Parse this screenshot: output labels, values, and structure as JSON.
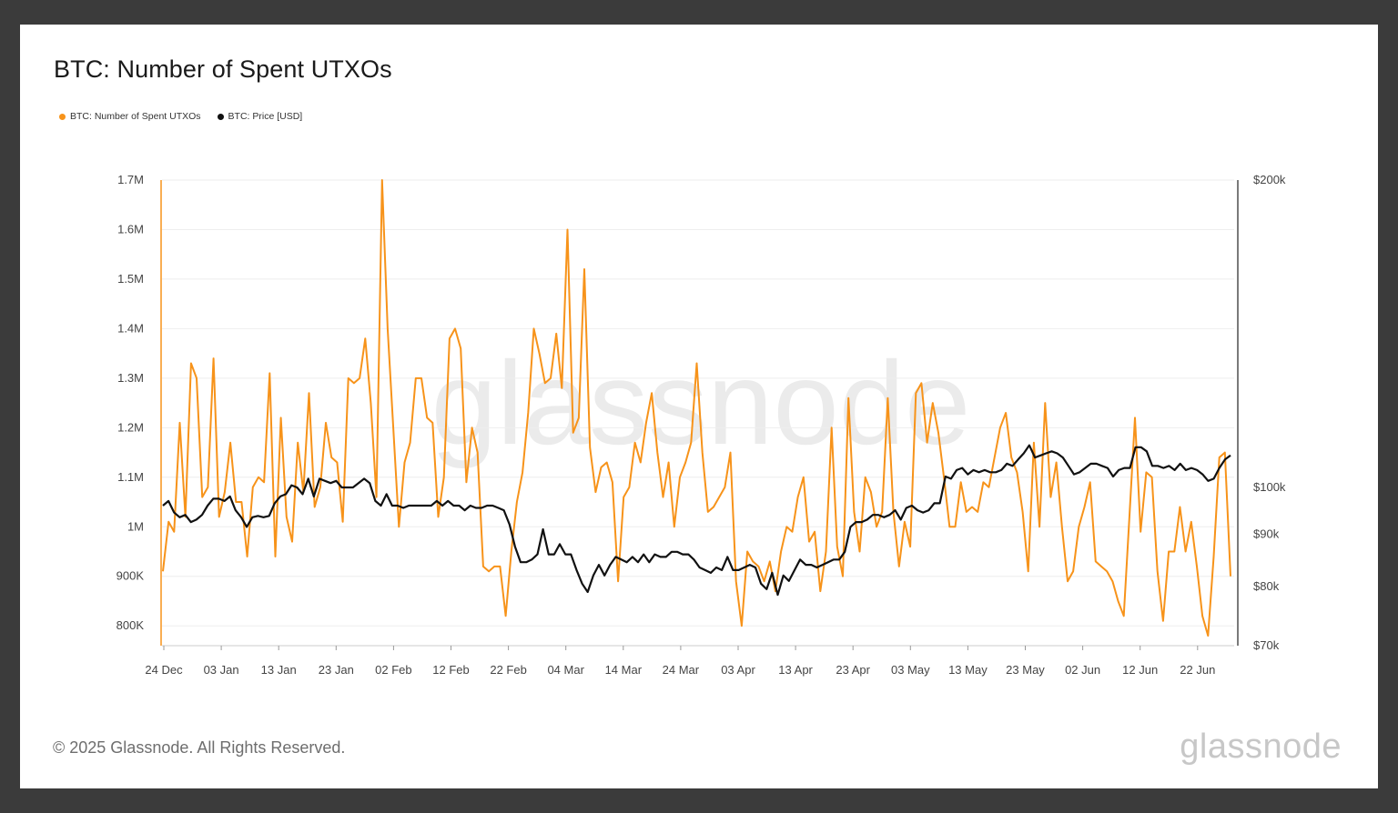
{
  "title": "BTC: Number of Spent UTXOs",
  "footer": "© 2025 Glassnode. All Rights Reserved.",
  "brand": "glassnode",
  "watermark": "glassnode",
  "colors": {
    "utxo": "#f7931a",
    "price": "#111111",
    "grid": "#eeeeee"
  },
  "legend": [
    {
      "label": "BTC: Number of Spent UTXOs",
      "color": "#f7931a"
    },
    {
      "label": "BTC: Price [USD]",
      "color": "#111111"
    }
  ],
  "chart_data": {
    "type": "line",
    "title": "BTC: Number of Spent UTXOs",
    "x_tick_labels": [
      "24 Dec",
      "03 Jan",
      "13 Jan",
      "23 Jan",
      "02 Feb",
      "12 Feb",
      "22 Feb",
      "04 Mar",
      "14 Mar",
      "24 Mar",
      "03 Apr",
      "13 Apr",
      "23 Apr",
      "03 May",
      "13 May",
      "23 May",
      "02 Jun",
      "12 Jun",
      "22 Jun"
    ],
    "y_left": {
      "ticks": [
        800000,
        900000,
        1000000,
        1100000,
        1200000,
        1300000,
        1400000,
        1500000,
        1600000,
        1700000
      ],
      "tick_labels": [
        "800K",
        "900K",
        "1M",
        "1.1M",
        "1.2M",
        "1.3M",
        "1.4M",
        "1.5M",
        "1.6M",
        "1.7M"
      ],
      "ylim": [
        760000,
        1700000
      ]
    },
    "y_right": {
      "scale": "log",
      "ticks": [
        70000,
        80000,
        90000,
        100000,
        200000
      ],
      "tick_labels": [
        "$70k",
        "$80k",
        "$90k",
        "$100k",
        "$200k"
      ],
      "ylim": [
        70000,
        200000
      ]
    },
    "series": [
      {
        "name": "BTC: Number of Spent UTXOs",
        "axis": "left",
        "values": [
          910000,
          1010000,
          990000,
          1210000,
          1020000,
          1330000,
          1300000,
          1060000,
          1080000,
          1340000,
          1020000,
          1070000,
          1170000,
          1050000,
          1050000,
          940000,
          1080000,
          1100000,
          1090000,
          1310000,
          940000,
          1220000,
          1020000,
          970000,
          1170000,
          1070000,
          1270000,
          1040000,
          1080000,
          1210000,
          1140000,
          1130000,
          1010000,
          1300000,
          1290000,
          1300000,
          1380000,
          1250000,
          1060000,
          1700000,
          1400000,
          1200000,
          1000000,
          1130000,
          1170000,
          1300000,
          1300000,
          1220000,
          1210000,
          1020000,
          1100000,
          1380000,
          1400000,
          1360000,
          1090000,
          1200000,
          1150000,
          920000,
          910000,
          920000,
          920000,
          820000,
          950000,
          1050000,
          1110000,
          1230000,
          1400000,
          1350000,
          1290000,
          1300000,
          1390000,
          1280000,
          1600000,
          1190000,
          1220000,
          1520000,
          1160000,
          1070000,
          1120000,
          1130000,
          1090000,
          890000,
          1060000,
          1080000,
          1170000,
          1130000,
          1210000,
          1270000,
          1150000,
          1060000,
          1130000,
          1000000,
          1100000,
          1130000,
          1170000,
          1330000,
          1150000,
          1030000,
          1040000,
          1060000,
          1080000,
          1150000,
          890000,
          800000,
          950000,
          930000,
          920000,
          890000,
          930000,
          870000,
          950000,
          1000000,
          990000,
          1060000,
          1100000,
          970000,
          990000,
          870000,
          950000,
          1200000,
          960000,
          900000,
          1260000,
          1030000,
          950000,
          1100000,
          1070000,
          1000000,
          1030000,
          1260000,
          1030000,
          920000,
          1010000,
          960000,
          1270000,
          1290000,
          1170000,
          1250000,
          1190000,
          1100000,
          1000000,
          1000000,
          1090000,
          1030000,
          1040000,
          1030000,
          1090000,
          1080000,
          1140000,
          1200000,
          1230000,
          1140000,
          1110000,
          1030000,
          910000,
          1170000,
          1000000,
          1250000,
          1060000,
          1130000,
          1000000,
          890000,
          910000,
          1000000,
          1040000,
          1090000,
          930000,
          920000,
          910000,
          890000,
          850000,
          820000,
          1020000,
          1220000,
          990000,
          1110000,
          1100000,
          910000,
          810000,
          950000,
          950000,
          1040000,
          950000,
          1010000,
          920000,
          820000,
          780000,
          940000,
          1140000,
          1150000,
          900000
        ]
      },
      {
        "name": "BTC: Price [USD]",
        "axis": "right",
        "values": [
          96000,
          97000,
          94500,
          93500,
          94000,
          92500,
          93000,
          94000,
          96000,
          97500,
          97500,
          97000,
          98000,
          95000,
          93500,
          91500,
          93500,
          93800,
          93500,
          93800,
          96500,
          98000,
          98500,
          100500,
          100000,
          98500,
          102000,
          98000,
          102000,
          101500,
          101000,
          101500,
          100000,
          100000,
          100000,
          101000,
          102000,
          101000,
          97000,
          96000,
          98500,
          96000,
          96000,
          95500,
          96000,
          96000,
          96000,
          96000,
          96000,
          97000,
          96000,
          97000,
          96000,
          96000,
          95000,
          96000,
          95500,
          95500,
          96000,
          96000,
          95500,
          95000,
          92000,
          87500,
          84500,
          84500,
          85000,
          86000,
          91000,
          86000,
          86000,
          88000,
          86000,
          86000,
          83000,
          80500,
          79000,
          82000,
          84000,
          82000,
          84000,
          85500,
          85000,
          84500,
          85500,
          84500,
          86000,
          84500,
          86000,
          85500,
          85500,
          86500,
          86500,
          86000,
          86000,
          85000,
          83500,
          83000,
          82500,
          83500,
          83000,
          85500,
          83000,
          83000,
          83500,
          84000,
          83500,
          80500,
          79500,
          82500,
          78500,
          82000,
          81000,
          83000,
          85000,
          84000,
          84000,
          83500,
          84000,
          84500,
          85000,
          85000,
          86500,
          91500,
          92500,
          92500,
          93000,
          94000,
          94000,
          93500,
          94000,
          95000,
          93000,
          95500,
          96000,
          95000,
          94500,
          95000,
          96500,
          96500,
          102500,
          102000,
          104000,
          104500,
          103000,
          104000,
          103500,
          104000,
          103500,
          103500,
          104000,
          105500,
          105000,
          106500,
          108000,
          110000,
          107000,
          107500,
          108000,
          108500,
          108000,
          107000,
          105000,
          103000,
          103500,
          104500,
          105500,
          105500,
          105000,
          104500,
          102500,
          104000,
          104500,
          104500,
          109500,
          109500,
          108500,
          105000,
          105000,
          104500,
          105000,
          104000,
          105500,
          104000,
          104500,
          104000,
          103000,
          101500,
          102000,
          104500,
          106500,
          107500
        ]
      }
    ]
  }
}
